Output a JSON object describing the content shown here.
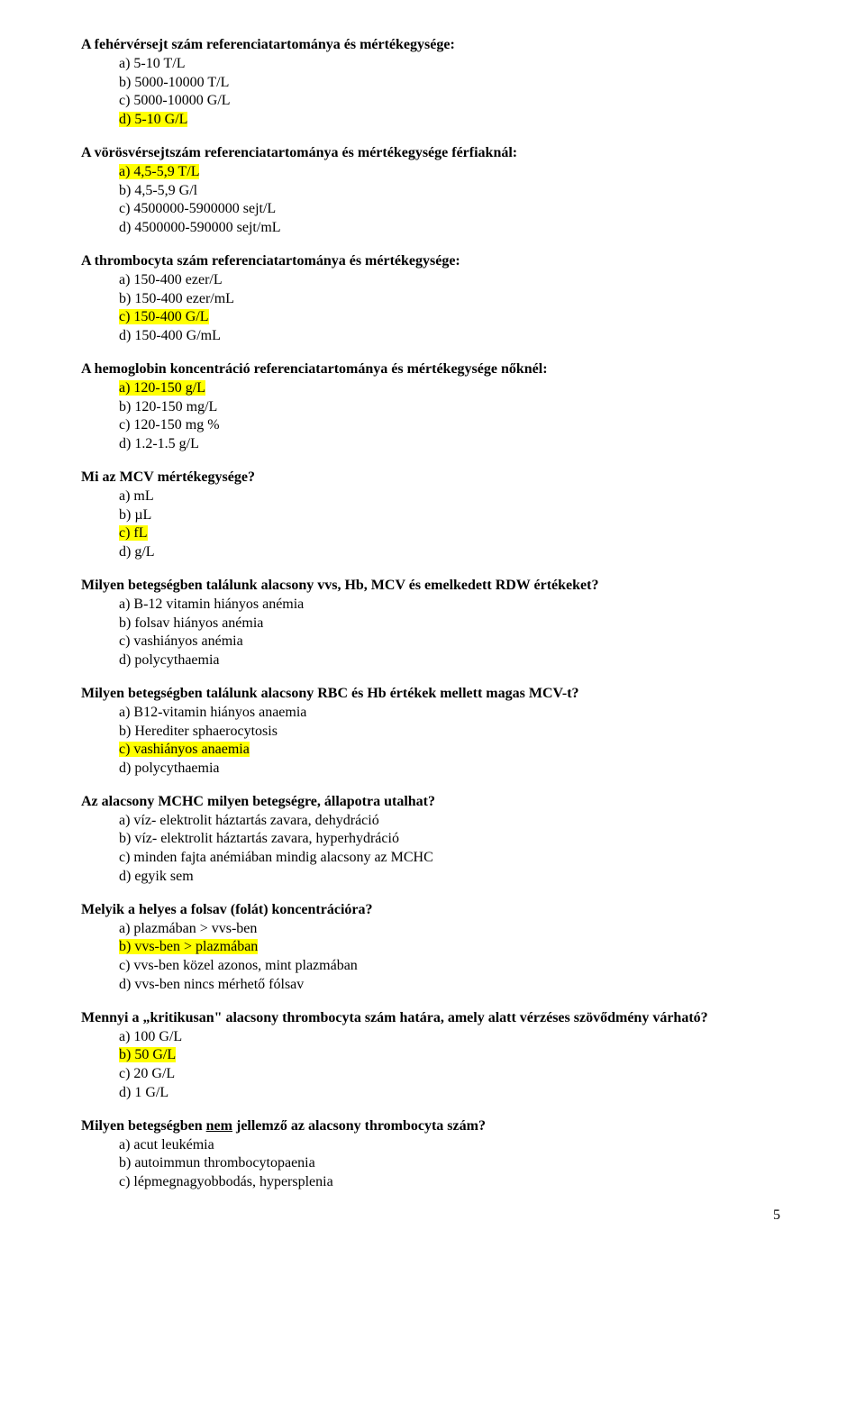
{
  "page_number": "5",
  "colors": {
    "highlight": "#ffff00",
    "text": "#000000",
    "background": "#ffffff"
  },
  "questions": [
    {
      "title": "A fehérvérsejt szám referenciatartománya és mértékegysége:",
      "options": [
        {
          "text": "a) 5-10 T/L",
          "hl": false
        },
        {
          "text": "b) 5000-10000 T/L",
          "hl": false
        },
        {
          "text": "c) 5000-10000 G/L",
          "hl": false
        },
        {
          "text": "d) 5-10 G/L",
          "hl": true
        }
      ]
    },
    {
      "title": "A vörösvérsejtszám referenciatartománya és mértékegysége férfiaknál:",
      "options": [
        {
          "text": "a) 4,5-5,9 T/L",
          "hl": true
        },
        {
          "text": "b) 4,5-5,9 G/l",
          "hl": false
        },
        {
          "text": "c) 4500000-5900000 sejt/L",
          "hl": false
        },
        {
          "text": "d) 4500000-590000 sejt/mL",
          "hl": false
        }
      ]
    },
    {
      "title": "A thrombocyta szám referenciatartománya és mértékegysége:",
      "options": [
        {
          "text": "a) 150-400 ezer/L",
          "hl": false
        },
        {
          "text": "b) 150-400 ezer/mL",
          "hl": false
        },
        {
          "text": "c) 150-400 G/L",
          "hl": true
        },
        {
          "text": "d) 150-400 G/mL",
          "hl": false
        }
      ]
    },
    {
      "title": "A hemoglobin koncentráció referenciatartománya és mértékegysége nőknél:",
      "options": [
        {
          "text": "a) 120-150 g/L",
          "hl": true
        },
        {
          "text": "b) 120-150 mg/L",
          "hl": false
        },
        {
          "text": "c) 120-150 mg %",
          "hl": false
        },
        {
          "text": "d) 1.2-1.5 g/L",
          "hl": false
        }
      ]
    },
    {
      "title": "Mi az MCV mértékegysége?",
      "options": [
        {
          "text": "a) mL",
          "hl": false
        },
        {
          "text": "b) µL",
          "hl": false
        },
        {
          "text": "c) fL",
          "hl": true
        },
        {
          "text": "d) g/L",
          "hl": false
        }
      ]
    },
    {
      "title": "Milyen betegségben találunk alacsony vvs, Hb, MCV és emelkedett RDW értékeket?",
      "options": [
        {
          "text": "a) B-12 vitamin hiányos anémia",
          "hl": false
        },
        {
          "text": "b) folsav hiányos anémia",
          "hl": false
        },
        {
          "text": "c) vashiányos anémia",
          "hl": false
        },
        {
          "text": "d) polycythaemia",
          "hl": false
        }
      ]
    },
    {
      "title": "Milyen betegségben találunk alacsony RBC és Hb értékek mellett magas MCV-t?",
      "options": [
        {
          "text": "a) B12-vitamin hiányos anaemia",
          "hl": false
        },
        {
          "text": "b) Herediter sphaerocytosis",
          "hl": false
        },
        {
          "text": "c) vashiányos anaemia",
          "hl": true
        },
        {
          "text": "d) polycythaemia",
          "hl": false
        }
      ]
    },
    {
      "title": "Az alacsony MCHC milyen betegségre, állapotra utalhat?",
      "options": [
        {
          "text": "a) víz- elektrolit háztartás zavara, dehydráció",
          "hl": false
        },
        {
          "text": "b) víz- elektrolit háztartás zavara, hyperhydráció",
          "hl": false
        },
        {
          "text": "c) minden fajta anémiában mindig alacsony az MCHC",
          "hl": false
        },
        {
          "text": "d) egyik sem",
          "hl": false
        }
      ]
    },
    {
      "title": "Melyik a helyes a folsav (folát) koncentrációra?",
      "options": [
        {
          "text": "a) plazmában > vvs-ben",
          "hl": false
        },
        {
          "text": "b) vvs-ben > plazmában",
          "hl": true
        },
        {
          "text": "c) vvs-ben közel azonos, mint plazmában",
          "hl": false
        },
        {
          "text": "d) vvs-ben nincs mérhető fólsav",
          "hl": false
        }
      ]
    },
    {
      "title": "Mennyi a „kritikusan\" alacsony thrombocyta szám határa, amely alatt vérzéses szövődmény várható?",
      "options": [
        {
          "text": "a) 100 G/L",
          "hl": false
        },
        {
          "text": "b) 50 G/L",
          "hl": true
        },
        {
          "text": "c) 20 G/L",
          "hl": false
        },
        {
          "text": "d) 1 G/L",
          "hl": false
        }
      ]
    },
    {
      "title_pre": "Milyen betegségben ",
      "title_underline": "nem",
      "title_post": " jellemző az alacsony thrombocyta szám?",
      "options": [
        {
          "text": "a) acut leukémia",
          "hl": false
        },
        {
          "text": "b) autoimmun thrombocytopaenia",
          "hl": false
        },
        {
          "text": "c) lépmegnagyobbodás, hypersplenia",
          "hl": false
        }
      ]
    }
  ]
}
